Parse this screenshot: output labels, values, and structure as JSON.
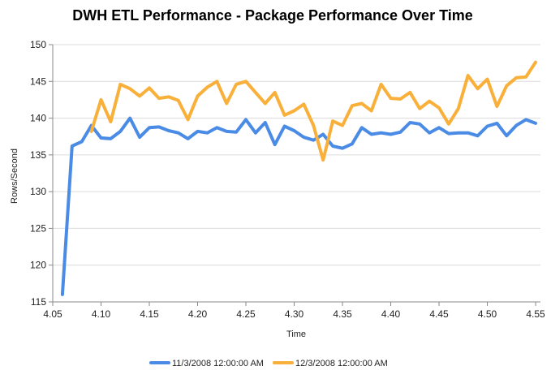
{
  "chart_data": {
    "type": "line",
    "title": "DWH ETL Performance - Package Performance Over Time",
    "xlabel": "Time",
    "ylabel": "Rows/Second",
    "xlim": [
      4.05,
      4.555
    ],
    "ylim": [
      115,
      150
    ],
    "x_ticks": [
      4.05,
      4.1,
      4.15,
      4.2,
      4.25,
      4.3,
      4.35,
      4.4,
      4.45,
      4.5,
      4.55
    ],
    "x_tick_labels": [
      "4.05",
      "4.10",
      "4.15",
      "4.20",
      "4.25",
      "4.30",
      "4.35",
      "4.40",
      "4.45",
      "4.50",
      "4.55"
    ],
    "y_ticks": [
      115,
      120,
      125,
      130,
      135,
      140,
      145,
      150
    ],
    "grid": true,
    "legend_position": "bottom-center",
    "series": [
      {
        "name": "11/3/2008 12:00:00 AM",
        "color": "#4A8BE6",
        "points": [
          [
            4.06,
            116.0
          ],
          [
            4.07,
            136.2
          ],
          [
            4.08,
            136.8
          ],
          [
            4.09,
            139.0
          ],
          [
            4.1,
            137.3
          ],
          [
            4.11,
            137.2
          ],
          [
            4.12,
            138.2
          ],
          [
            4.13,
            140.0
          ],
          [
            4.14,
            137.4
          ],
          [
            4.15,
            138.7
          ],
          [
            4.16,
            138.8
          ],
          [
            4.17,
            138.3
          ],
          [
            4.18,
            138.0
          ],
          [
            4.19,
            137.2
          ],
          [
            4.2,
            138.2
          ],
          [
            4.21,
            138.0
          ],
          [
            4.22,
            138.7
          ],
          [
            4.23,
            138.2
          ],
          [
            4.24,
            138.1
          ],
          [
            4.25,
            139.8
          ],
          [
            4.26,
            138.0
          ],
          [
            4.27,
            139.4
          ],
          [
            4.28,
            136.4
          ],
          [
            4.29,
            138.9
          ],
          [
            4.3,
            138.3
          ],
          [
            4.31,
            137.4
          ],
          [
            4.32,
            137.0
          ],
          [
            4.33,
            137.8
          ],
          [
            4.34,
            136.2
          ],
          [
            4.35,
            135.9
          ],
          [
            4.36,
            136.5
          ],
          [
            4.37,
            138.7
          ],
          [
            4.38,
            137.8
          ],
          [
            4.39,
            138.0
          ],
          [
            4.4,
            137.8
          ],
          [
            4.41,
            138.1
          ],
          [
            4.42,
            139.4
          ],
          [
            4.43,
            139.2
          ],
          [
            4.44,
            138.0
          ],
          [
            4.45,
            138.7
          ],
          [
            4.46,
            137.9
          ],
          [
            4.47,
            138.0
          ],
          [
            4.48,
            138.0
          ],
          [
            4.49,
            137.6
          ],
          [
            4.5,
            138.9
          ],
          [
            4.51,
            139.3
          ],
          [
            4.52,
            137.6
          ],
          [
            4.53,
            139.0
          ],
          [
            4.54,
            139.8
          ],
          [
            4.55,
            139.3
          ]
        ]
      },
      {
        "name": "12/3/2008 12:00:00 AM",
        "color": "#F9B03A",
        "points": [
          [
            4.09,
            138.2
          ],
          [
            4.1,
            142.5
          ],
          [
            4.11,
            139.5
          ],
          [
            4.12,
            144.6
          ],
          [
            4.13,
            144.0
          ],
          [
            4.14,
            143.0
          ],
          [
            4.15,
            144.1
          ],
          [
            4.16,
            142.7
          ],
          [
            4.17,
            142.9
          ],
          [
            4.18,
            142.4
          ],
          [
            4.19,
            139.8
          ],
          [
            4.2,
            143.0
          ],
          [
            4.21,
            144.2
          ],
          [
            4.22,
            145.0
          ],
          [
            4.23,
            142.0
          ],
          [
            4.24,
            144.6
          ],
          [
            4.25,
            145.0
          ],
          [
            4.26,
            143.5
          ],
          [
            4.27,
            142.0
          ],
          [
            4.28,
            143.5
          ],
          [
            4.29,
            140.4
          ],
          [
            4.3,
            141.0
          ],
          [
            4.31,
            141.9
          ],
          [
            4.32,
            139.0
          ],
          [
            4.33,
            134.3
          ],
          [
            4.34,
            139.6
          ],
          [
            4.35,
            139.0
          ],
          [
            4.36,
            141.7
          ],
          [
            4.37,
            142.0
          ],
          [
            4.38,
            141.0
          ],
          [
            4.39,
            144.6
          ],
          [
            4.4,
            142.7
          ],
          [
            4.41,
            142.6
          ],
          [
            4.42,
            143.5
          ],
          [
            4.43,
            141.3
          ],
          [
            4.44,
            142.3
          ],
          [
            4.45,
            141.4
          ],
          [
            4.46,
            139.2
          ],
          [
            4.47,
            141.3
          ],
          [
            4.48,
            145.8
          ],
          [
            4.49,
            144.0
          ],
          [
            4.5,
            145.3
          ],
          [
            4.51,
            141.6
          ],
          [
            4.52,
            144.4
          ],
          [
            4.53,
            145.5
          ],
          [
            4.54,
            145.6
          ],
          [
            4.55,
            147.6
          ]
        ]
      }
    ]
  }
}
